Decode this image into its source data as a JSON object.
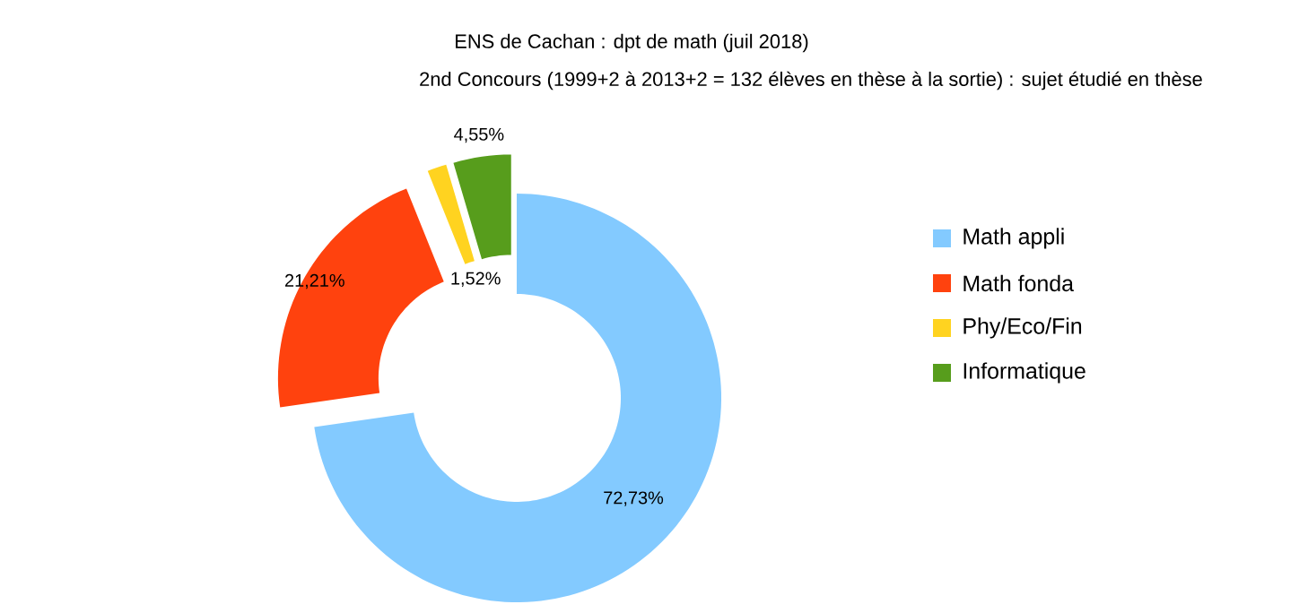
{
  "chart_data": {
    "type": "donut",
    "title": "ENS de Cachan : dpt de math (juil 2018)",
    "subtitle": "2nd Concours (1999+2 à 2013+2 = 132 élèves en thèse à la sortie) : sujet étudié en thèse",
    "categories": [
      "Math appli",
      "Math fonda",
      "Phy/Eco/Fin",
      "Informatique"
    ],
    "values": [
      72.73,
      21.21,
      1.52,
      4.55
    ],
    "colors": [
      "#83caff",
      "#ff420e",
      "#ffd320",
      "#579d1c"
    ],
    "value_labels": [
      "72,73%",
      "21,21%",
      "1,52%",
      "4,55%"
    ],
    "legend": "right"
  }
}
